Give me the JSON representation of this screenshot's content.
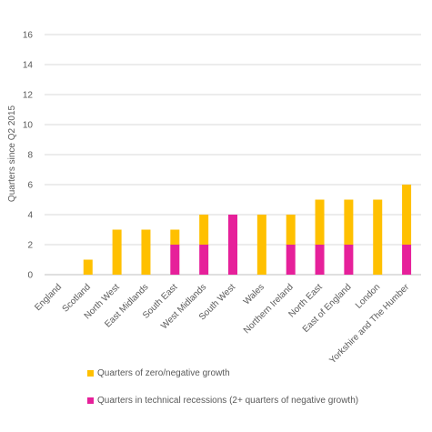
{
  "chart_data": {
    "type": "bar",
    "stacked": true,
    "title": "",
    "xlabel": "",
    "ylabel": "Quarters since Q2 2015",
    "ylim": [
      0,
      16
    ],
    "yticks": [
      0,
      2,
      4,
      6,
      8,
      10,
      12,
      14,
      16
    ],
    "grid": true,
    "legend_position": "bottom",
    "categories": [
      "England",
      "Scotland",
      "North West",
      "East Midlands",
      "South East",
      "West Midlands",
      "South West",
      "Wales",
      "Northern Ireland",
      "North East",
      "East of England",
      "London",
      "Yorkshire and The Humber"
    ],
    "series": [
      {
        "name": "Quarters in technical recessions (2+ quarters of negative growth)",
        "color": "#e6209a",
        "values": [
          0,
          0,
          0,
          0,
          2,
          2,
          4,
          0,
          2,
          2,
          2,
          0,
          2
        ]
      },
      {
        "name": "Quarters of zero/negative growth",
        "color": "#ffc000",
        "values": [
          0,
          1,
          3,
          3,
          1,
          2,
          0,
          4,
          2,
          3,
          3,
          5,
          4
        ]
      }
    ],
    "legend_order": [
      1,
      0
    ]
  }
}
